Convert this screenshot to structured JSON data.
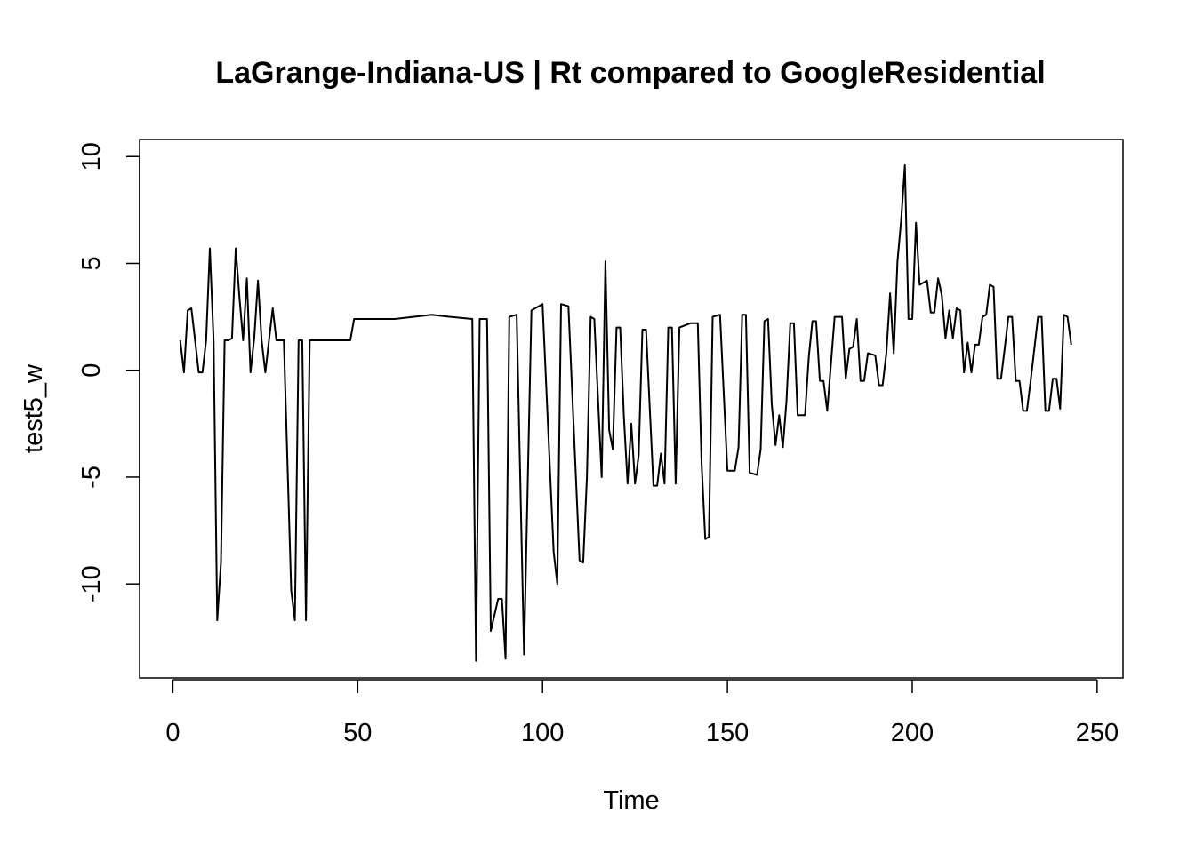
{
  "chart_data": {
    "type": "line",
    "title": "LaGrange-Indiana-US | Rt compared to GoogleResidential",
    "xlabel": "Time",
    "ylabel": "test5_w",
    "xlim": [
      -9,
      257
    ],
    "ylim": [
      -14.4,
      10.8
    ],
    "x_ticks": [
      0,
      50,
      100,
      150,
      200,
      250
    ],
    "y_ticks": [
      -10,
      -5,
      0,
      5,
      10
    ],
    "grid": false,
    "legend": "none",
    "line_color": "#000000",
    "series": [
      {
        "points": [
          [
            2,
            1.4
          ],
          [
            3,
            -0.1
          ],
          [
            4,
            2.8
          ],
          [
            5,
            2.9
          ],
          [
            6,
            1.4
          ],
          [
            7,
            -0.1
          ],
          [
            8,
            -0.1
          ],
          [
            9,
            1.4
          ],
          [
            10,
            5.7
          ],
          [
            11,
            1.4
          ],
          [
            12,
            -11.7
          ],
          [
            13,
            -9
          ],
          [
            14,
            1.4
          ],
          [
            15,
            1.4
          ],
          [
            16,
            1.5
          ],
          [
            17,
            5.7
          ],
          [
            18,
            3.4
          ],
          [
            19,
            1.4
          ],
          [
            20,
            4.3
          ],
          [
            21,
            -0.1
          ],
          [
            22,
            1.5
          ],
          [
            23,
            4.2
          ],
          [
            24,
            1.4
          ],
          [
            25,
            -0.1
          ],
          [
            26,
            1.4
          ],
          [
            27,
            2.9
          ],
          [
            28,
            1.4
          ],
          [
            29,
            1.4
          ],
          [
            30,
            1.4
          ],
          [
            32,
            -10.3
          ],
          [
            33,
            -11.7
          ],
          [
            34,
            1.4
          ],
          [
            35,
            1.4
          ],
          [
            36,
            -11.7
          ],
          [
            37,
            1.4
          ],
          [
            40,
            1.4
          ],
          [
            45,
            1.4
          ],
          [
            48,
            1.4
          ],
          [
            49,
            2.4
          ],
          [
            55,
            2.4
          ],
          [
            60,
            2.4
          ],
          [
            70,
            2.6
          ],
          [
            75,
            2.5
          ],
          [
            81,
            2.4
          ],
          [
            82,
            -13.6
          ],
          [
            83,
            2.4
          ],
          [
            85,
            2.4
          ],
          [
            86,
            -12.2
          ],
          [
            88,
            -10.7
          ],
          [
            89,
            -10.7
          ],
          [
            90,
            -13.5
          ],
          [
            91,
            2.5
          ],
          [
            93,
            2.6
          ],
          [
            95,
            -13.3
          ],
          [
            97,
            2.8
          ],
          [
            100,
            3.1
          ],
          [
            103,
            -8.5
          ],
          [
            104,
            -10
          ],
          [
            105,
            3.1
          ],
          [
            107,
            3
          ],
          [
            110,
            -8.9
          ],
          [
            111,
            -9
          ],
          [
            112,
            -5
          ],
          [
            113,
            2.5
          ],
          [
            114,
            2.4
          ],
          [
            116,
            -5
          ],
          [
            117,
            5.1
          ],
          [
            118,
            -2.8
          ],
          [
            119,
            -3.7
          ],
          [
            120,
            2
          ],
          [
            121,
            2
          ],
          [
            122,
            -2.2
          ],
          [
            123,
            -5.3
          ],
          [
            124,
            -2.5
          ],
          [
            125,
            -5.3
          ],
          [
            126,
            -4
          ],
          [
            127,
            1.9
          ],
          [
            128,
            1.9
          ],
          [
            130,
            -5.4
          ],
          [
            131,
            -5.4
          ],
          [
            132,
            -3.9
          ],
          [
            133,
            -5.3
          ],
          [
            134,
            2
          ],
          [
            135,
            2
          ],
          [
            136,
            -5.3
          ],
          [
            137,
            2
          ],
          [
            140,
            2.2
          ],
          [
            142,
            2.2
          ],
          [
            143,
            -4.3
          ],
          [
            144,
            -7.9
          ],
          [
            145,
            -7.8
          ],
          [
            146,
            2.5
          ],
          [
            148,
            2.6
          ],
          [
            150,
            -4.7
          ],
          [
            152,
            -4.7
          ],
          [
            153,
            -3.6
          ],
          [
            154,
            2.6
          ],
          [
            155,
            2.6
          ],
          [
            156,
            -4.8
          ],
          [
            158,
            -4.9
          ],
          [
            159,
            -3.7
          ],
          [
            160,
            2.3
          ],
          [
            161,
            2.4
          ],
          [
            162,
            -1.6
          ],
          [
            163,
            -3.5
          ],
          [
            164,
            -2.1
          ],
          [
            165,
            -3.6
          ],
          [
            166,
            -1.4
          ],
          [
            167,
            2.2
          ],
          [
            168,
            2.2
          ],
          [
            169,
            -2.1
          ],
          [
            170,
            -2.1
          ],
          [
            171,
            -2.1
          ],
          [
            172,
            0.6
          ],
          [
            173,
            2.3
          ],
          [
            174,
            2.3
          ],
          [
            175,
            -0.5
          ],
          [
            176,
            -0.5
          ],
          [
            177,
            -1.9
          ],
          [
            179,
            2.5
          ],
          [
            181,
            2.5
          ],
          [
            182,
            -0.4
          ],
          [
            183,
            1
          ],
          [
            184,
            1.1
          ],
          [
            185,
            2.4
          ],
          [
            186,
            -0.5
          ],
          [
            187,
            -0.5
          ],
          [
            188,
            0.8
          ],
          [
            190,
            0.7
          ],
          [
            191,
            -0.7
          ],
          [
            192,
            -0.7
          ],
          [
            193,
            0.8
          ],
          [
            194,
            3.6
          ],
          [
            195,
            0.8
          ],
          [
            196,
            5.1
          ],
          [
            197,
            7
          ],
          [
            198,
            9.6
          ],
          [
            199,
            2.4
          ],
          [
            200,
            2.4
          ],
          [
            201,
            6.9
          ],
          [
            202,
            4
          ],
          [
            204,
            4.2
          ],
          [
            205,
            2.7
          ],
          [
            206,
            2.7
          ],
          [
            207,
            4.3
          ],
          [
            208,
            3.5
          ],
          [
            209,
            1.5
          ],
          [
            210,
            2.8
          ],
          [
            211,
            1.5
          ],
          [
            212,
            2.9
          ],
          [
            213,
            2.8
          ],
          [
            214,
            -0.1
          ],
          [
            215,
            1.3
          ],
          [
            216,
            -0.1
          ],
          [
            217,
            1.2
          ],
          [
            218,
            1.2
          ],
          [
            219,
            2.5
          ],
          [
            220,
            2.6
          ],
          [
            221,
            4
          ],
          [
            222,
            3.9
          ],
          [
            223,
            -0.4
          ],
          [
            224,
            -0.4
          ],
          [
            225,
            1
          ],
          [
            226,
            2.5
          ],
          [
            227,
            2.5
          ],
          [
            228,
            -0.5
          ],
          [
            229,
            -0.5
          ],
          [
            230,
            -1.9
          ],
          [
            231,
            -1.9
          ],
          [
            232,
            -0.5
          ],
          [
            234,
            2.5
          ],
          [
            235,
            2.5
          ],
          [
            236,
            -1.9
          ],
          [
            237,
            -1.9
          ],
          [
            238,
            -0.4
          ],
          [
            239,
            -0.4
          ],
          [
            240,
            -1.8
          ],
          [
            241,
            2.6
          ],
          [
            242,
            2.5
          ],
          [
            243,
            1.2
          ]
        ]
      }
    ]
  }
}
